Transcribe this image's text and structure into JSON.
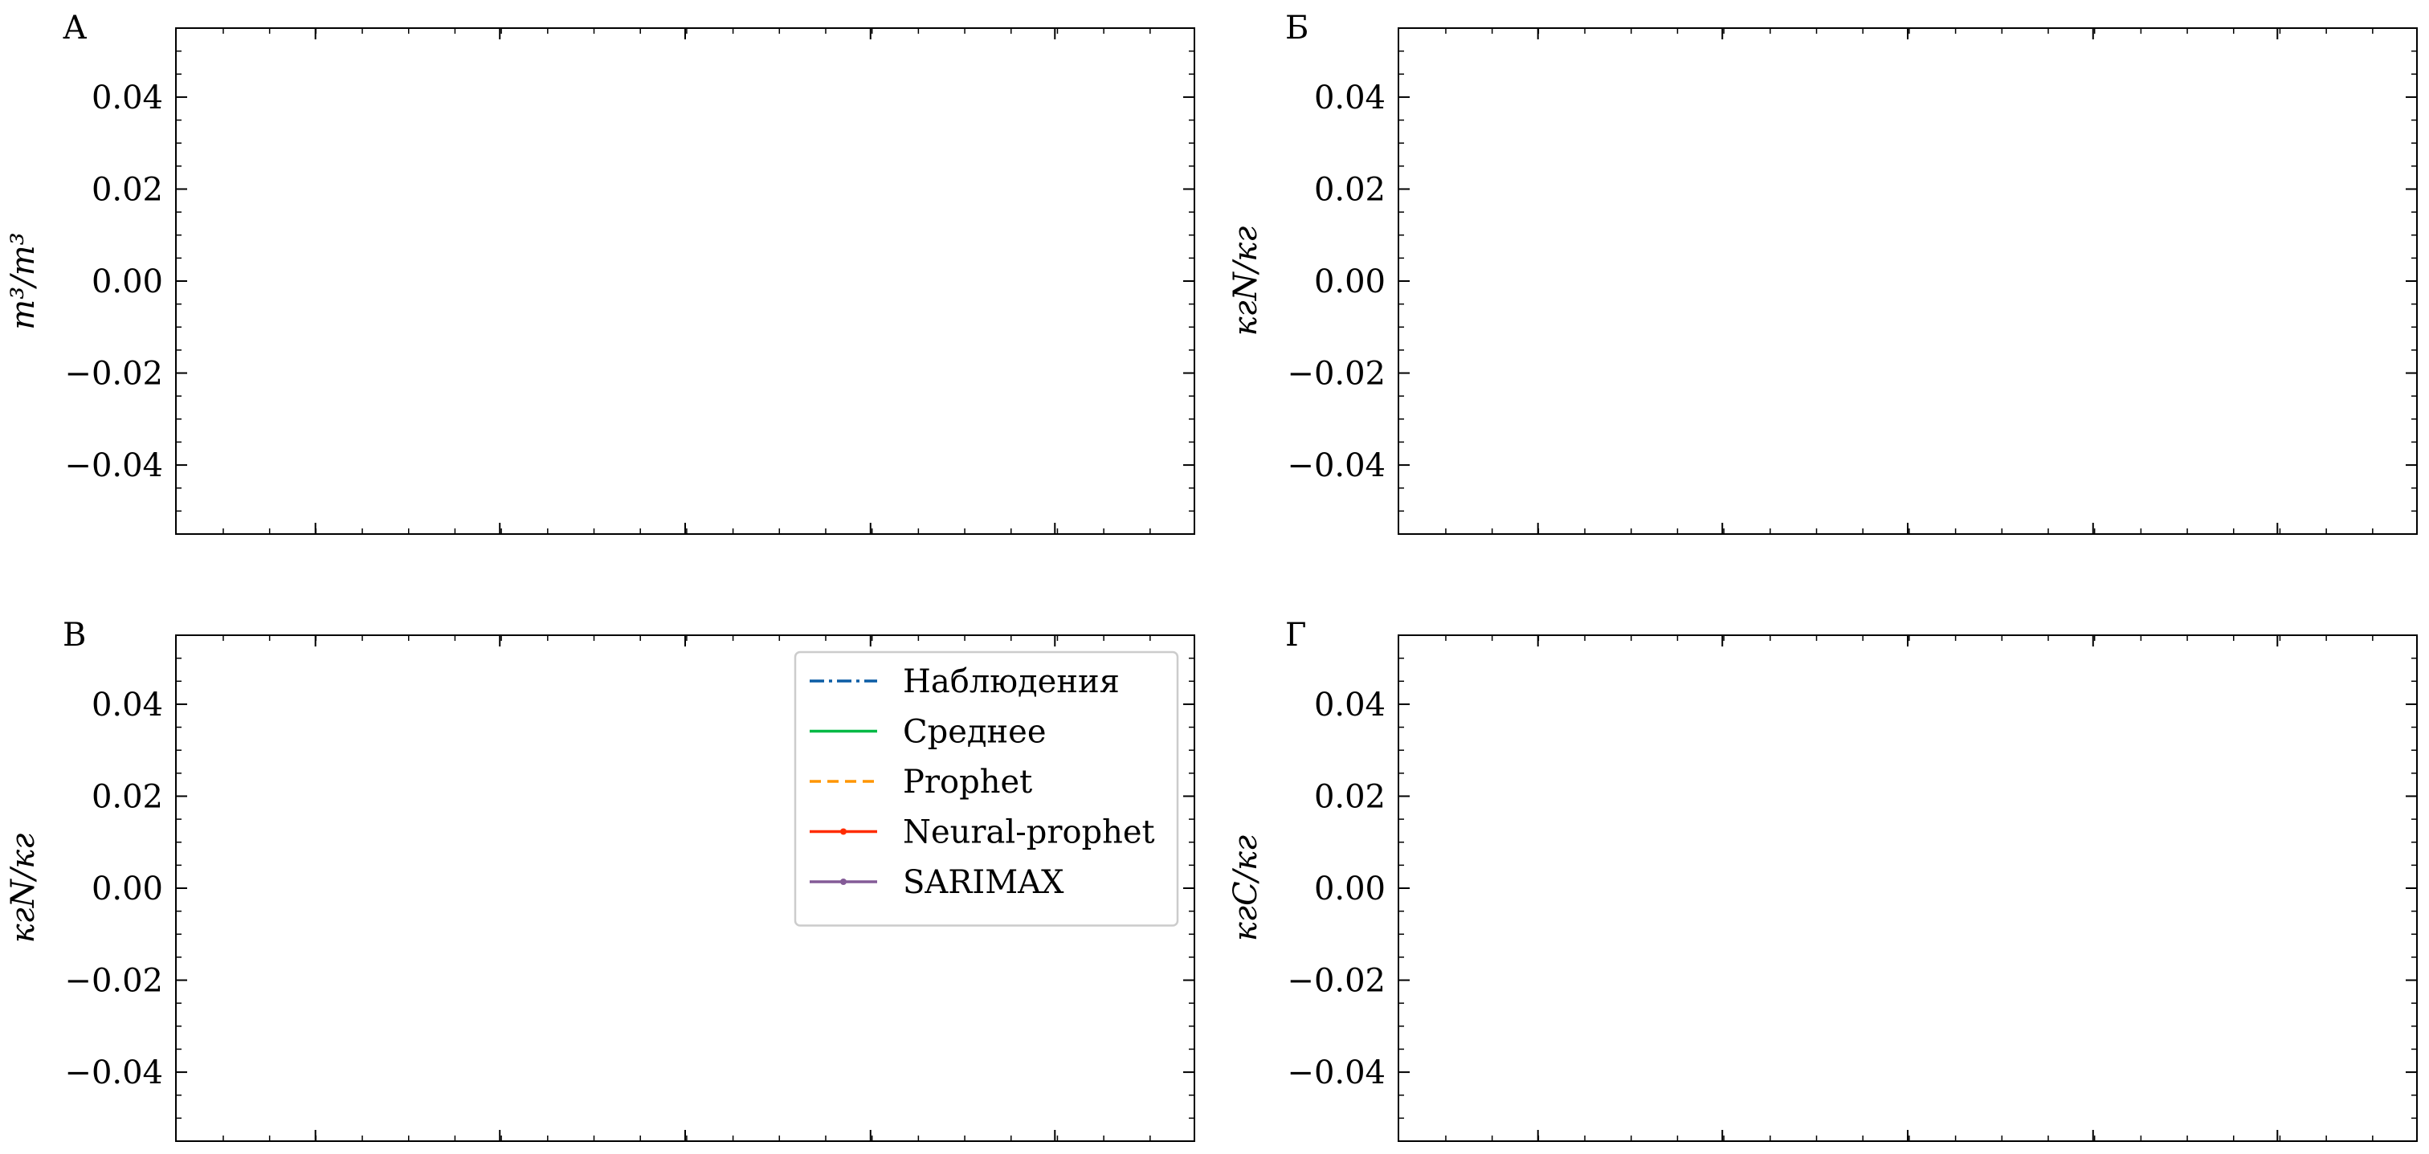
{
  "chart_data": [
    {
      "type": "line",
      "panel": "А",
      "ylabel": "m³/m³",
      "ylim": [
        -0.055,
        0.055
      ],
      "yticks": [
        -0.04,
        -0.02,
        0.0,
        0.02,
        0.04
      ],
      "ytick_labels": [
        "−0.04",
        "−0.02",
        "0.00",
        "0.02",
        "0.04"
      ],
      "series": [],
      "grid": false
    },
    {
      "type": "line",
      "panel": "Б",
      "ylabel": "кгN/кг",
      "ylim": [
        -0.055,
        0.055
      ],
      "yticks": [
        -0.04,
        -0.02,
        0.0,
        0.02,
        0.04
      ],
      "ytick_labels": [
        "−0.04",
        "−0.02",
        "0.00",
        "0.02",
        "0.04"
      ],
      "series": [],
      "grid": false
    },
    {
      "type": "line",
      "panel": "В",
      "ylabel": "кгN/кг",
      "ylim": [
        -0.055,
        0.055
      ],
      "yticks": [
        -0.04,
        -0.02,
        0.0,
        0.02,
        0.04
      ],
      "ytick_labels": [
        "−0.04",
        "−0.02",
        "0.00",
        "0.02",
        "0.04"
      ],
      "series": [],
      "grid": false,
      "legend": {
        "placement": "upper-right",
        "entries": [
          {
            "name": "Наблюдения",
            "color": "#0C5DA5",
            "style": "dashdot",
            "marker": "none"
          },
          {
            "name": "Среднее",
            "color": "#00B945",
            "style": "solid",
            "marker": "none"
          },
          {
            "name": "Prophet",
            "color": "#FF9500",
            "style": "dashed",
            "marker": "none"
          },
          {
            "name": "Neural-prophet",
            "color": "#FF2C00",
            "style": "solid",
            "marker": "point"
          },
          {
            "name": "SARIMAX",
            "color": "#845B97",
            "style": "solid",
            "marker": "point"
          }
        ]
      }
    },
    {
      "type": "line",
      "panel": "Г",
      "ylabel": "кгC/кг",
      "ylim": [
        -0.055,
        0.055
      ],
      "yticks": [
        -0.04,
        -0.02,
        0.0,
        0.02,
        0.04
      ],
      "ytick_labels": [
        "−0.04",
        "−0.02",
        "0.00",
        "0.02",
        "0.04"
      ],
      "series": [],
      "grid": false
    }
  ]
}
